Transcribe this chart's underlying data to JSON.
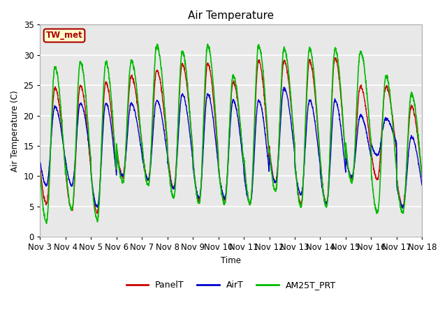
{
  "title": "Air Temperature",
  "ylabel": "Air Temperature (C)",
  "xlabel": "Time",
  "ylim": [
    0,
    35
  ],
  "plot_bg_color": "#e8e8e8",
  "grid_color": "#ffffff",
  "label_box_text": "TW_met",
  "label_box_facecolor": "#ffffcc",
  "label_box_edgecolor": "#aa0000",
  "label_box_textcolor": "#aa0000",
  "series": [
    {
      "name": "PanelT",
      "color": "#cc0000",
      "lw": 1.0
    },
    {
      "name": "AirT",
      "color": "#0000cc",
      "lw": 1.0
    },
    {
      "name": "AM25T_PRT",
      "color": "#00bb00",
      "lw": 1.2
    }
  ],
  "xtick_labels": [
    "Nov 3",
    "Nov 4",
    "Nov 5",
    "Nov 6",
    "Nov 7",
    "Nov 8",
    "Nov 9",
    "Nov 10",
    "Nov 11",
    "Nov 12",
    "Nov 13",
    "Nov 14",
    "Nov 15",
    "Nov 16",
    "Nov 17",
    "Nov 18"
  ],
  "days": 15,
  "pts_per_day": 144,
  "panel_day_peaks": [
    24.5,
    25.0,
    25.5,
    26.5,
    27.5,
    28.5,
    28.5,
    25.5,
    29.0,
    29.0,
    29.0,
    29.5,
    24.8,
    24.8,
    21.5
  ],
  "panel_day_mins": [
    5.5,
    4.5,
    4.0,
    10.0,
    9.5,
    8.0,
    6.0,
    6.0,
    5.5,
    9.0,
    5.5,
    5.5,
    9.5,
    9.5,
    5.0
  ],
  "air_day_peaks": [
    21.5,
    22.0,
    22.0,
    22.0,
    22.5,
    23.5,
    23.5,
    22.5,
    22.5,
    24.5,
    22.5,
    22.5,
    20.0,
    19.5,
    16.5
  ],
  "air_day_mins": [
    8.5,
    8.5,
    5.0,
    10.0,
    9.5,
    8.0,
    6.5,
    6.5,
    5.5,
    9.0,
    7.0,
    5.5,
    10.0,
    13.5,
    5.0
  ],
  "am25_day_peaks": [
    28.0,
    28.8,
    28.8,
    29.0,
    31.5,
    30.5,
    31.5,
    26.5,
    31.5,
    31.0,
    31.0,
    31.0,
    30.5,
    26.5,
    23.5
  ],
  "am25_day_mins": [
    2.5,
    4.5,
    2.8,
    9.0,
    8.5,
    6.5,
    5.5,
    5.5,
    5.5,
    7.5,
    5.0,
    5.0,
    9.0,
    4.0,
    4.0
  ]
}
